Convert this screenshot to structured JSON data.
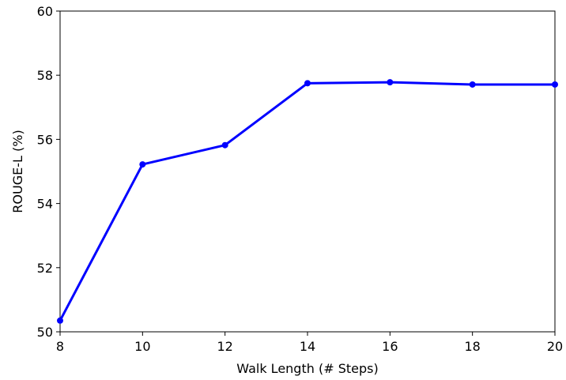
{
  "chart_data": {
    "type": "line",
    "x_label": "Walk Length (# Steps)",
    "y_label": "ROUGE-L (%)",
    "x": [
      8,
      10,
      12,
      14,
      16,
      18,
      20
    ],
    "series": [
      {
        "name": "ROUGE-L",
        "color": "#0000ff",
        "values": [
          50.35,
          55.22,
          55.82,
          57.75,
          57.78,
          57.71,
          57.71
        ]
      }
    ],
    "xlim": [
      8,
      20
    ],
    "xticks": [
      8,
      10,
      12,
      14,
      16,
      18,
      20
    ],
    "ylim": [
      50,
      60
    ],
    "yticks": [
      50,
      52,
      54,
      56,
      58,
      60
    ],
    "grid": false
  }
}
